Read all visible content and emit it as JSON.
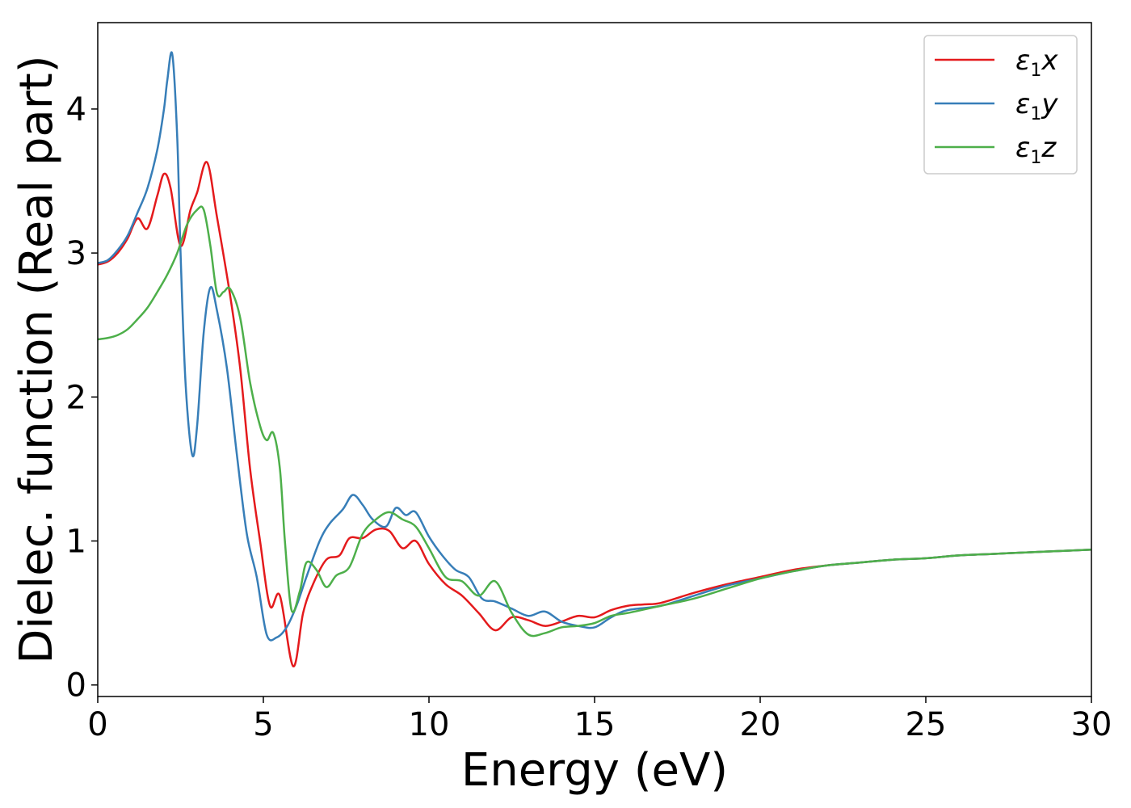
{
  "chart_data": {
    "type": "line",
    "xlabel": "Energy (eV)",
    "ylabel": "Dielec. function (Real part)",
    "xlim": [
      0,
      30
    ],
    "ylim": [
      -0.08,
      4.6
    ],
    "xticks": [
      "0",
      "5",
      "10",
      "15",
      "20",
      "25",
      "30"
    ],
    "xtick_values": [
      0,
      5,
      10,
      15,
      20,
      25,
      30
    ],
    "yticks": [
      "0",
      "1",
      "2",
      "3",
      "4"
    ],
    "ytick_values": [
      0,
      1,
      2,
      3,
      4
    ],
    "grid": false,
    "legend_position": "top-right",
    "series": [
      {
        "name": "ε1x",
        "color": "#e41a1c",
        "x": [
          0,
          0.3,
          0.6,
          0.9,
          1.2,
          1.5,
          1.8,
          2.0,
          2.2,
          2.5,
          2.8,
          3.0,
          3.3,
          3.6,
          4.0,
          4.3,
          4.6,
          4.9,
          5.2,
          5.5,
          5.9,
          6.2,
          6.5,
          6.9,
          7.3,
          7.6,
          8.0,
          8.4,
          8.8,
          9.2,
          9.6,
          10.0,
          10.5,
          11.0,
          11.5,
          12.0,
          12.5,
          13.0,
          13.5,
          14.0,
          14.5,
          15.0,
          15.5,
          16.0,
          16.5,
          17.0,
          18.0,
          19.0,
          20.0,
          21.0,
          22.0,
          23.0,
          24.0,
          25.0,
          26.0,
          27.0,
          28.0,
          29.0,
          30.0
        ],
        "y": [
          2.92,
          2.94,
          3.0,
          3.1,
          3.24,
          3.17,
          3.4,
          3.55,
          3.45,
          3.05,
          3.3,
          3.42,
          3.63,
          3.25,
          2.7,
          2.2,
          1.5,
          1.0,
          0.55,
          0.62,
          0.13,
          0.5,
          0.7,
          0.87,
          0.9,
          1.02,
          1.02,
          1.08,
          1.07,
          0.95,
          1.0,
          0.84,
          0.7,
          0.62,
          0.5,
          0.38,
          0.47,
          0.45,
          0.41,
          0.44,
          0.48,
          0.47,
          0.52,
          0.55,
          0.56,
          0.57,
          0.64,
          0.7,
          0.75,
          0.8,
          0.83,
          0.85,
          0.87,
          0.88,
          0.9,
          0.91,
          0.92,
          0.93,
          0.94
        ]
      },
      {
        "name": "ε1y",
        "color": "#377eb8",
        "x": [
          0,
          0.3,
          0.6,
          0.9,
          1.2,
          1.5,
          1.8,
          2.0,
          2.1,
          2.25,
          2.4,
          2.5,
          2.65,
          2.85,
          3.0,
          3.2,
          3.4,
          3.6,
          3.9,
          4.2,
          4.5,
          4.8,
          5.1,
          5.4,
          5.7,
          6.0,
          6.3,
          6.7,
          7.0,
          7.4,
          7.7,
          8.0,
          8.3,
          8.7,
          9.0,
          9.3,
          9.6,
          10.0,
          10.4,
          10.8,
          11.2,
          11.6,
          12.0,
          12.5,
          13.0,
          13.5,
          14.0,
          14.5,
          15.0,
          15.5,
          16.0,
          17.0,
          18.0,
          19.0,
          20.0,
          21.0,
          22.0,
          23.0,
          24.0,
          25.0,
          26.0,
          27.0,
          28.0,
          29.0,
          30.0
        ],
        "y": [
          2.93,
          2.95,
          3.02,
          3.12,
          3.28,
          3.45,
          3.72,
          4.0,
          4.2,
          4.38,
          3.8,
          3.0,
          2.1,
          1.6,
          1.8,
          2.45,
          2.76,
          2.6,
          2.2,
          1.6,
          1.05,
          0.75,
          0.35,
          0.33,
          0.4,
          0.55,
          0.75,
          1.0,
          1.12,
          1.22,
          1.32,
          1.25,
          1.15,
          1.1,
          1.23,
          1.18,
          1.2,
          1.03,
          0.9,
          0.8,
          0.75,
          0.6,
          0.58,
          0.53,
          0.48,
          0.51,
          0.44,
          0.41,
          0.4,
          0.47,
          0.52,
          0.55,
          0.62,
          0.69,
          0.74,
          0.79,
          0.83,
          0.85,
          0.87,
          0.88,
          0.9,
          0.91,
          0.92,
          0.93,
          0.94
        ]
      },
      {
        "name": "ε1z",
        "color": "#4daf4a",
        "x": [
          0,
          0.3,
          0.6,
          0.9,
          1.2,
          1.5,
          1.8,
          2.1,
          2.4,
          2.7,
          3.0,
          3.2,
          3.4,
          3.6,
          3.8,
          4.0,
          4.3,
          4.6,
          4.9,
          5.1,
          5.3,
          5.5,
          5.65,
          5.85,
          6.1,
          6.3,
          6.6,
          6.9,
          7.2,
          7.6,
          8.0,
          8.4,
          8.8,
          9.2,
          9.6,
          10.0,
          10.5,
          11.0,
          11.5,
          12.0,
          12.5,
          13.0,
          13.5,
          14.0,
          14.5,
          15.0,
          15.5,
          16.0,
          17.0,
          18.0,
          19.0,
          20.0,
          21.0,
          22.0,
          23.0,
          24.0,
          25.0,
          26.0,
          27.0,
          28.0,
          29.0,
          30.0
        ],
        "y": [
          2.4,
          2.41,
          2.43,
          2.47,
          2.54,
          2.62,
          2.73,
          2.85,
          3.0,
          3.2,
          3.3,
          3.3,
          3.05,
          2.72,
          2.73,
          2.75,
          2.55,
          2.1,
          1.8,
          1.7,
          1.75,
          1.5,
          1.0,
          0.52,
          0.65,
          0.85,
          0.8,
          0.68,
          0.76,
          0.82,
          1.05,
          1.15,
          1.2,
          1.15,
          1.1,
          0.95,
          0.75,
          0.72,
          0.62,
          0.72,
          0.5,
          0.35,
          0.36,
          0.4,
          0.41,
          0.43,
          0.48,
          0.5,
          0.55,
          0.6,
          0.67,
          0.74,
          0.79,
          0.83,
          0.85,
          0.87,
          0.88,
          0.9,
          0.91,
          0.92,
          0.93,
          0.94
        ]
      }
    ]
  }
}
